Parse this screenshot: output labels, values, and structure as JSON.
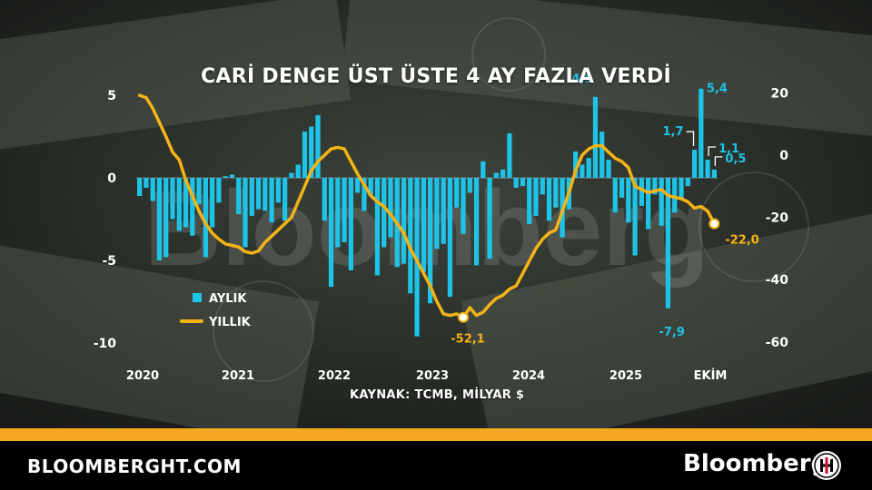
{
  "title": "CARİ DENGE ÜST ÜSTE 4 AY FAZLA VERDİ",
  "source": "KAYNAK: TCMB, MİLYAR $",
  "footer": {
    "site": "BLOOMBERGHT.COM",
    "brand": "Bloomberg",
    "logo_icon": "bloomberg-ht-emblem-icon"
  },
  "watermark": "Bloomberg",
  "colors": {
    "bar": "#1ec3e8",
    "line": "#f5b316",
    "accent": "#f5a623"
  },
  "chart_data": {
    "type": "bar",
    "x_labels": [
      "2020",
      "2021",
      "2022",
      "2023",
      "2024",
      "2025",
      "EKİM"
    ],
    "left_axis": {
      "ticks": [
        "5",
        "0",
        "-5",
        "-10"
      ],
      "ylim": [
        -10.5,
        5.5
      ]
    },
    "right_axis": {
      "ticks": [
        "20",
        "0",
        "-20",
        "-40",
        "-60"
      ],
      "ylim": [
        -61,
        21
      ]
    },
    "grid": false,
    "legend": {
      "placement": "bottom-left",
      "entries": [
        "AYLIK",
        "YILLIK"
      ]
    },
    "series": [
      {
        "name": "AYLIK",
        "type": "bar",
        "axis": "left",
        "values": [
          -1.1,
          -0.6,
          -1.4,
          -5.0,
          -4.8,
          -2.5,
          -3.2,
          -3.0,
          -3.5,
          -1.6,
          -4.8,
          -3.0,
          -1.5,
          0.1,
          0.2,
          -2.2,
          -4.2,
          -2.3,
          -1.9,
          -2.0,
          -2.7,
          -1.5,
          -2.6,
          0.3,
          0.8,
          2.8,
          3.1,
          3.8,
          -2.6,
          -6.6,
          -4.2,
          -3.9,
          -5.6,
          -0.9,
          -2.0,
          -1.1,
          -5.9,
          -4.2,
          -3.6,
          -5.4,
          -5.2,
          -7.0,
          -9.6,
          -5.7,
          -7.6,
          -4.3,
          -4.0,
          -7.2,
          -1.8,
          -3.4,
          -0.9,
          -5.3,
          1.0,
          -4.9,
          0.3,
          0.5,
          2.7,
          -0.6,
          -0.5,
          -2.8,
          -2.3,
          -1.0,
          -2.6,
          -1.8,
          -3.6,
          -1.9,
          1.6,
          0.8,
          1.2,
          4.9,
          2.8,
          1.1,
          -2.1,
          -1.2,
          -2.7,
          -4.7,
          -1.7,
          -3.1,
          -1.0,
          -2.9,
          -7.9,
          -2.1,
          -1.3,
          -0.5,
          1.7,
          5.4,
          1.1,
          0.5
        ]
      },
      {
        "name": "YILLIK",
        "type": "line",
        "axis": "right",
        "values": [
          19.2,
          18.5,
          15.0,
          10.5,
          6.0,
          1.0,
          -1.5,
          -8.0,
          -13.0,
          -18.0,
          -22.0,
          -25.0,
          -27.0,
          -28.5,
          -29.0,
          -29.5,
          -31.0,
          -31.5,
          -30.8,
          -28.0,
          -26.0,
          -24.0,
          -22.0,
          -20.0,
          -15.0,
          -10.0,
          -5.0,
          -2.0,
          0.0,
          2.0,
          2.5,
          2.0,
          -2.0,
          -6.0,
          -9.5,
          -13.0,
          -15.0,
          -16.5,
          -19.0,
          -22.0,
          -25.0,
          -30.0,
          -34.0,
          -38.0,
          -42.0,
          -47.0,
          -51.0,
          -51.5,
          -51.0,
          -52.1,
          -49.0,
          -51.5,
          -50.5,
          -48.0,
          -46.0,
          -45.0,
          -43.0,
          -42.0,
          -38.0,
          -34.0,
          -30.0,
          -27.0,
          -25.0,
          -24.0,
          -18.0,
          -12.0,
          -5.0,
          0.0,
          2.0,
          3.0,
          3.0,
          1.0,
          -1.0,
          -2.0,
          -4.0,
          -10.0,
          -11.0,
          -12.0,
          -11.5,
          -11.0,
          -13.0,
          -13.5,
          -14.0,
          -15.0,
          -17.0,
          -16.5,
          -18.0,
          -22.0
        ]
      }
    ],
    "annotations": [
      {
        "text": "4,9",
        "series": "AYLIK",
        "index": 69
      },
      {
        "text": "1,7",
        "series": "AYLIK",
        "index": 84
      },
      {
        "text": "5,4",
        "series": "AYLIK",
        "index": 85
      },
      {
        "text": "1,1",
        "series": "AYLIK",
        "index": 86
      },
      {
        "text": "0,5",
        "series": "AYLIK",
        "index": 87
      },
      {
        "text": "-7,9",
        "series": "AYLIK",
        "index": 80
      },
      {
        "text": "-52,1",
        "series": "YILLIK",
        "index": 49
      },
      {
        "text": "-22,0",
        "series": "YILLIK",
        "index": 87
      }
    ]
  }
}
